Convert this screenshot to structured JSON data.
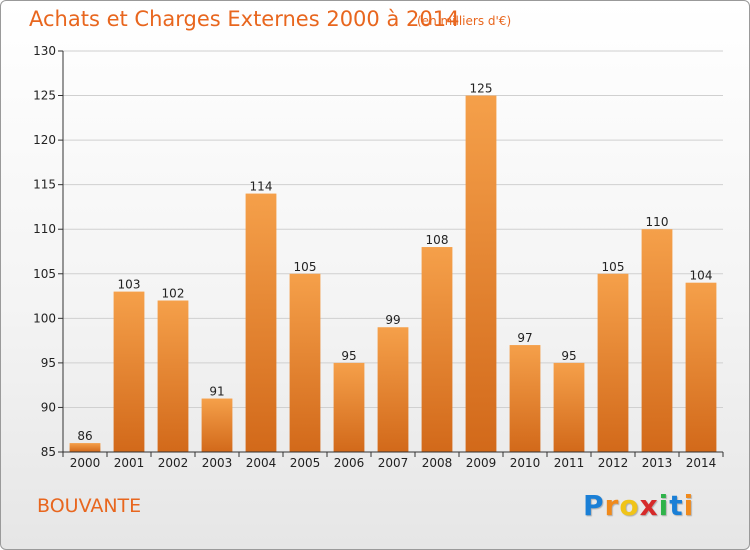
{
  "header": {
    "title": "Achats et Charges Externes 2000 à 2014",
    "subtitle": "(en milliers d'€)"
  },
  "footer": {
    "commune": "BOUVANTE",
    "logo_letters": [
      "P",
      "r",
      "o",
      "x",
      "i",
      "t",
      "i"
    ],
    "logo_colors": [
      "#1a7fd6",
      "#f08a1c",
      "#f0c419",
      "#d62a2a",
      "#2fb34a",
      "#1a7fd6",
      "#f08a1c"
    ]
  },
  "chart_data": {
    "type": "bar",
    "categories": [
      "2000",
      "2001",
      "2002",
      "2003",
      "2004",
      "2005",
      "2006",
      "2007",
      "2008",
      "2009",
      "2010",
      "2011",
      "2012",
      "2013",
      "2014"
    ],
    "values": [
      86,
      103,
      102,
      91,
      114,
      105,
      95,
      99,
      108,
      125,
      97,
      95,
      105,
      110,
      104
    ],
    "data_labels": [
      "86",
      "103",
      "102",
      "91",
      "114",
      "105",
      "95",
      "99",
      "108",
      "125",
      "97",
      "95",
      "105",
      "110",
      "104"
    ],
    "y_ticks": [
      "85",
      "90",
      "95",
      "100",
      "105",
      "110",
      "115",
      "120",
      "125",
      "130"
    ],
    "ylim": [
      85,
      130
    ],
    "grid": true,
    "bar_color_top": "#f5a04a",
    "bar_color_bottom": "#d2691a"
  }
}
